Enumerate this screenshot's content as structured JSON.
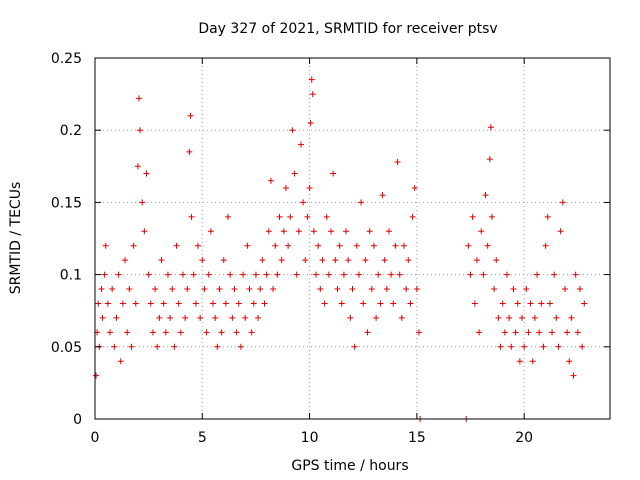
{
  "chart_data": {
    "type": "scatter",
    "title": "Day 327 of 2021, SRMTID for receiver ptsv",
    "xlabel": "GPS time / hours",
    "ylabel": "SRMTID / TECUs",
    "xlim": [
      0,
      24
    ],
    "ylim": [
      0,
      0.25
    ],
    "xticks": [
      0,
      5,
      10,
      15,
      20
    ],
    "xtick_labels": [
      "0",
      "5",
      "10",
      "15",
      "20"
    ],
    "yticks": [
      0,
      0.05,
      0.1,
      0.15,
      0.2,
      0.25
    ],
    "ytick_labels": [
      "0",
      "0.05",
      "0.1",
      "0.15",
      "0.2",
      "0.25"
    ],
    "grid": true,
    "marker": "+",
    "color": "#e00000",
    "series": [
      {
        "name": "SRMTID",
        "points": [
          [
            0.05,
            0.03
          ],
          [
            0.1,
            0.06
          ],
          [
            0.15,
            0.08
          ],
          [
            0.2,
            0.05
          ],
          [
            0.3,
            0.09
          ],
          [
            0.35,
            0.07
          ],
          [
            0.45,
            0.1
          ],
          [
            0.5,
            0.12
          ],
          [
            0.6,
            0.08
          ],
          [
            0.7,
            0.06
          ],
          [
            0.8,
            0.09
          ],
          [
            0.9,
            0.05
          ],
          [
            1.0,
            0.07
          ],
          [
            1.1,
            0.1
          ],
          [
            1.2,
            0.04
          ],
          [
            1.3,
            0.08
          ],
          [
            1.4,
            0.11
          ],
          [
            1.5,
            0.06
          ],
          [
            1.6,
            0.09
          ],
          [
            1.7,
            0.05
          ],
          [
            1.8,
            0.12
          ],
          [
            1.9,
            0.08
          ],
          [
            2.0,
            0.175
          ],
          [
            2.05,
            0.222
          ],
          [
            2.1,
            0.2
          ],
          [
            2.2,
            0.15
          ],
          [
            2.3,
            0.13
          ],
          [
            2.4,
            0.17
          ],
          [
            2.5,
            0.1
          ],
          [
            2.6,
            0.08
          ],
          [
            2.7,
            0.06
          ],
          [
            2.8,
            0.09
          ],
          [
            2.9,
            0.05
          ],
          [
            3.0,
            0.07
          ],
          [
            3.1,
            0.11
          ],
          [
            3.2,
            0.08
          ],
          [
            3.3,
            0.06
          ],
          [
            3.4,
            0.1
          ],
          [
            3.5,
            0.07
          ],
          [
            3.6,
            0.09
          ],
          [
            3.7,
            0.05
          ],
          [
            3.8,
            0.12
          ],
          [
            3.9,
            0.08
          ],
          [
            4.0,
            0.06
          ],
          [
            4.1,
            0.1
          ],
          [
            4.2,
            0.07
          ],
          [
            4.3,
            0.09
          ],
          [
            4.4,
            0.185
          ],
          [
            4.45,
            0.21
          ],
          [
            4.5,
            0.14
          ],
          [
            4.6,
            0.1
          ],
          [
            4.7,
            0.08
          ],
          [
            4.8,
            0.12
          ],
          [
            4.9,
            0.07
          ],
          [
            5.0,
            0.11
          ],
          [
            5.1,
            0.09
          ],
          [
            5.2,
            0.06
          ],
          [
            5.3,
            0.1
          ],
          [
            5.4,
            0.13
          ],
          [
            5.5,
            0.08
          ],
          [
            5.6,
            0.07
          ],
          [
            5.7,
            0.05
          ],
          [
            5.8,
            0.09
          ],
          [
            5.9,
            0.06
          ],
          [
            6.0,
            0.11
          ],
          [
            6.1,
            0.08
          ],
          [
            6.2,
            0.14
          ],
          [
            6.3,
            0.1
          ],
          [
            6.4,
            0.07
          ],
          [
            6.5,
            0.09
          ],
          [
            6.6,
            0.06
          ],
          [
            6.7,
            0.08
          ],
          [
            6.8,
            0.05
          ],
          [
            6.9,
            0.1
          ],
          [
            7.0,
            0.07
          ],
          [
            7.1,
            0.12
          ],
          [
            7.2,
            0.09
          ],
          [
            7.3,
            0.06
          ],
          [
            7.4,
            0.08
          ],
          [
            7.5,
            0.1
          ],
          [
            7.6,
            0.07
          ],
          [
            7.7,
            0.09
          ],
          [
            7.8,
            0.11
          ],
          [
            7.9,
            0.08
          ],
          [
            8.0,
            0.1
          ],
          [
            8.1,
            0.13
          ],
          [
            8.2,
            0.165
          ],
          [
            8.3,
            0.09
          ],
          [
            8.4,
            0.12
          ],
          [
            8.5,
            0.1
          ],
          [
            8.6,
            0.14
          ],
          [
            8.7,
            0.11
          ],
          [
            8.8,
            0.13
          ],
          [
            8.9,
            0.16
          ],
          [
            9.0,
            0.12
          ],
          [
            9.1,
            0.14
          ],
          [
            9.2,
            0.2
          ],
          [
            9.3,
            0.17
          ],
          [
            9.4,
            0.1
          ],
          [
            9.5,
            0.13
          ],
          [
            9.6,
            0.19
          ],
          [
            9.7,
            0.15
          ],
          [
            9.8,
            0.11
          ],
          [
            9.9,
            0.14
          ],
          [
            10.0,
            0.16
          ],
          [
            10.05,
            0.205
          ],
          [
            10.1,
            0.235
          ],
          [
            10.15,
            0.225
          ],
          [
            10.2,
            0.13
          ],
          [
            10.3,
            0.1
          ],
          [
            10.4,
            0.12
          ],
          [
            10.5,
            0.09
          ],
          [
            10.6,
            0.11
          ],
          [
            10.7,
            0.08
          ],
          [
            10.8,
            0.14
          ],
          [
            10.9,
            0.1
          ],
          [
            11.0,
            0.13
          ],
          [
            11.1,
            0.17
          ],
          [
            11.2,
            0.11
          ],
          [
            11.3,
            0.09
          ],
          [
            11.4,
            0.12
          ],
          [
            11.5,
            0.08
          ],
          [
            11.6,
            0.1
          ],
          [
            11.7,
            0.13
          ],
          [
            11.8,
            0.11
          ],
          [
            11.9,
            0.07
          ],
          [
            12.0,
            0.09
          ],
          [
            12.1,
            0.05
          ],
          [
            12.2,
            0.12
          ],
          [
            12.3,
            0.1
          ],
          [
            12.4,
            0.15
          ],
          [
            12.5,
            0.08
          ],
          [
            12.6,
            0.11
          ],
          [
            12.7,
            0.06
          ],
          [
            12.8,
            0.13
          ],
          [
            12.9,
            0.09
          ],
          [
            13.0,
            0.12
          ],
          [
            13.1,
            0.07
          ],
          [
            13.2,
            0.1
          ],
          [
            13.3,
            0.08
          ],
          [
            13.4,
            0.155
          ],
          [
            13.5,
            0.11
          ],
          [
            13.6,
            0.09
          ],
          [
            13.7,
            0.13
          ],
          [
            13.8,
            0.1
          ],
          [
            13.9,
            0.08
          ],
          [
            14.0,
            0.12
          ],
          [
            14.1,
            0.178
          ],
          [
            14.2,
            0.1
          ],
          [
            14.3,
            0.07
          ],
          [
            14.4,
            0.12
          ],
          [
            14.5,
            0.09
          ],
          [
            14.6,
            0.11
          ],
          [
            14.7,
            0.08
          ],
          [
            14.8,
            0.14
          ],
          [
            14.9,
            0.16
          ],
          [
            15.0,
            0.09
          ],
          [
            15.1,
            0.06
          ],
          [
            15.15,
            0.0
          ],
          [
            17.3,
            0.0
          ],
          [
            17.4,
            0.12
          ],
          [
            17.5,
            0.1
          ],
          [
            17.6,
            0.14
          ],
          [
            17.7,
            0.08
          ],
          [
            17.8,
            0.11
          ],
          [
            17.9,
            0.06
          ],
          [
            18.0,
            0.13
          ],
          [
            18.1,
            0.1
          ],
          [
            18.2,
            0.155
          ],
          [
            18.3,
            0.12
          ],
          [
            18.4,
            0.18
          ],
          [
            18.45,
            0.202
          ],
          [
            18.5,
            0.14
          ],
          [
            18.6,
            0.09
          ],
          [
            18.7,
            0.11
          ],
          [
            18.8,
            0.07
          ],
          [
            18.9,
            0.05
          ],
          [
            19.0,
            0.08
          ],
          [
            19.1,
            0.06
          ],
          [
            19.2,
            0.1
          ],
          [
            19.3,
            0.07
          ],
          [
            19.4,
            0.05
          ],
          [
            19.5,
            0.09
          ],
          [
            19.6,
            0.06
          ],
          [
            19.7,
            0.08
          ],
          [
            19.8,
            0.04
          ],
          [
            19.9,
            0.07
          ],
          [
            20.0,
            0.05
          ],
          [
            20.1,
            0.09
          ],
          [
            20.2,
            0.06
          ],
          [
            20.3,
            0.08
          ],
          [
            20.4,
            0.04
          ],
          [
            20.5,
            0.07
          ],
          [
            20.6,
            0.1
          ],
          [
            20.7,
            0.06
          ],
          [
            20.8,
            0.08
          ],
          [
            20.9,
            0.05
          ],
          [
            21.0,
            0.12
          ],
          [
            21.1,
            0.14
          ],
          [
            21.2,
            0.08
          ],
          [
            21.3,
            0.06
          ],
          [
            21.4,
            0.1
          ],
          [
            21.5,
            0.07
          ],
          [
            21.6,
            0.05
          ],
          [
            21.7,
            0.13
          ],
          [
            21.8,
            0.15
          ],
          [
            21.9,
            0.09
          ],
          [
            22.0,
            0.06
          ],
          [
            22.1,
            0.04
          ],
          [
            22.2,
            0.07
          ],
          [
            22.3,
            0.03
          ],
          [
            22.4,
            0.1
          ],
          [
            22.5,
            0.06
          ],
          [
            22.6,
            0.09
          ],
          [
            22.7,
            0.05
          ],
          [
            22.8,
            0.08
          ]
        ]
      }
    ]
  }
}
